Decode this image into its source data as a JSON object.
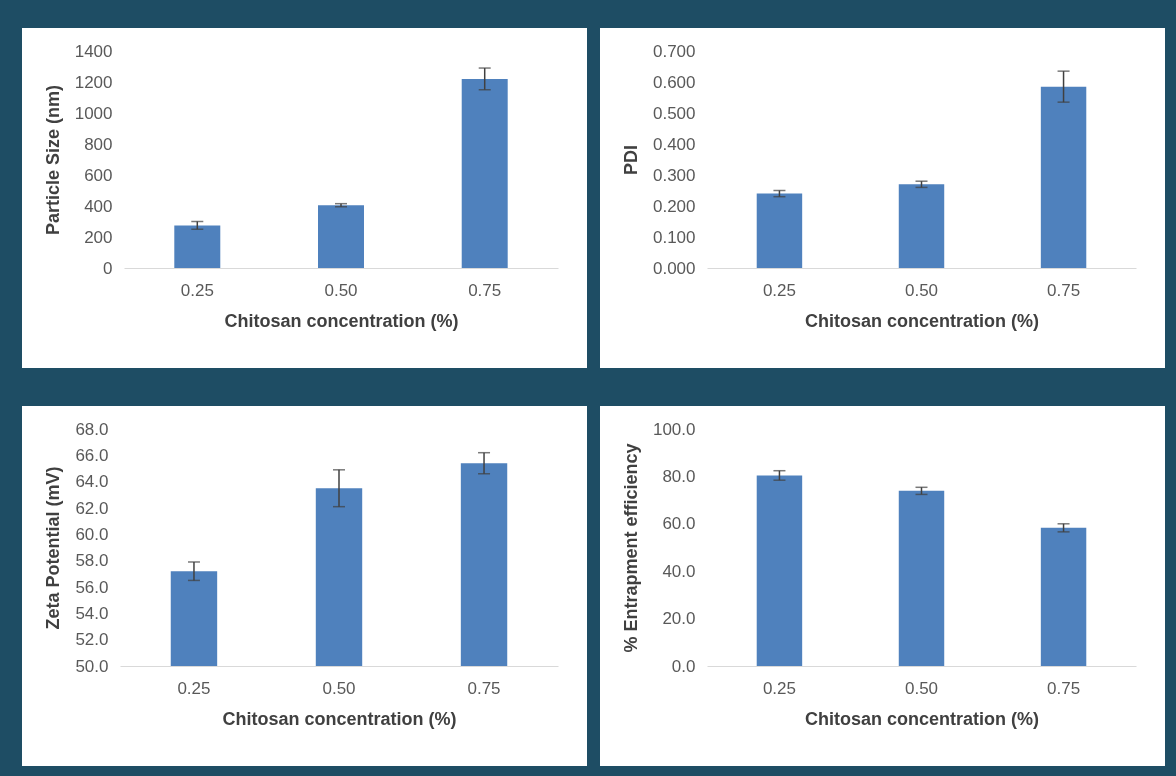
{
  "chart_data": [
    {
      "type": "bar",
      "xlabel": "Chitosan concentration (%)",
      "ylabel": "Particle Size (nm)",
      "categories": [
        "0.25",
        "0.50",
        "0.75"
      ],
      "values": [
        275,
        405,
        1220
      ],
      "errors": [
        25,
        10,
        70
      ],
      "color": "#4f81bd",
      "ylim": [
        0,
        1400
      ],
      "yticks": [
        0,
        200,
        400,
        600,
        800,
        1000,
        1200,
        1400
      ]
    },
    {
      "type": "bar",
      "xlabel": "Chitosan concentration (%)",
      "ylabel": "PDI",
      "categories": [
        "0.25",
        "0.50",
        "0.75"
      ],
      "values": [
        0.24,
        0.27,
        0.585
      ],
      "errors": [
        0.01,
        0.01,
        0.05
      ],
      "color": "#4f81bd",
      "ylim": [
        0,
        0.7
      ],
      "yticks": [
        {
          "value": 0,
          "label": "0.000"
        },
        {
          "value": 0.1,
          "label": "0.100"
        },
        {
          "value": 0.2,
          "label": "0.200"
        },
        {
          "value": 0.3,
          "label": "0.300"
        },
        {
          "value": 0.4,
          "label": "0.400"
        },
        {
          "value": 0.5,
          "label": "0.500"
        },
        {
          "value": 0.6,
          "label": "0.600"
        },
        {
          "value": 0.7,
          "label": "0.700"
        }
      ]
    },
    {
      "type": "bar",
      "xlabel": "Chitosan concentration (%)",
      "ylabel": "Zeta Potential (mV)",
      "categories": [
        "0.25",
        "0.50",
        "0.75"
      ],
      "values": [
        57.2,
        63.5,
        65.4
      ],
      "errors": [
        0.7,
        1.4,
        0.8
      ],
      "color": "#4f81bd",
      "ylim": [
        50,
        68
      ],
      "yticks": [
        {
          "value": 50,
          "label": "50.0"
        },
        {
          "value": 52,
          "label": "52.0"
        },
        {
          "value": 54,
          "label": "54.0"
        },
        {
          "value": 56,
          "label": "56.0"
        },
        {
          "value": 58,
          "label": "58.0"
        },
        {
          "value": 60,
          "label": "60.0"
        },
        {
          "value": 62,
          "label": "62.0"
        },
        {
          "value": 64,
          "label": "64.0"
        },
        {
          "value": 66,
          "label": "66.0"
        },
        {
          "value": 68,
          "label": "68.0"
        }
      ]
    },
    {
      "type": "bar",
      "xlabel": "Chitosan concentration (%)",
      "ylabel": "% Entrapment efficiency",
      "categories": [
        "0.25",
        "0.50",
        "0.75"
      ],
      "values": [
        80.4,
        73.9,
        58.3
      ],
      "errors": [
        2,
        1.5,
        1.7
      ],
      "color": "#4f81bd",
      "ylim": [
        0,
        100
      ],
      "yticks": [
        {
          "value": 0,
          "label": "0.0"
        },
        {
          "value": 20,
          "label": "20.0"
        },
        {
          "value": 40,
          "label": "40.0"
        },
        {
          "value": 60,
          "label": "60.0"
        },
        {
          "value": 80,
          "label": "80.0"
        },
        {
          "value": 100,
          "label": "100.0"
        }
      ]
    }
  ]
}
